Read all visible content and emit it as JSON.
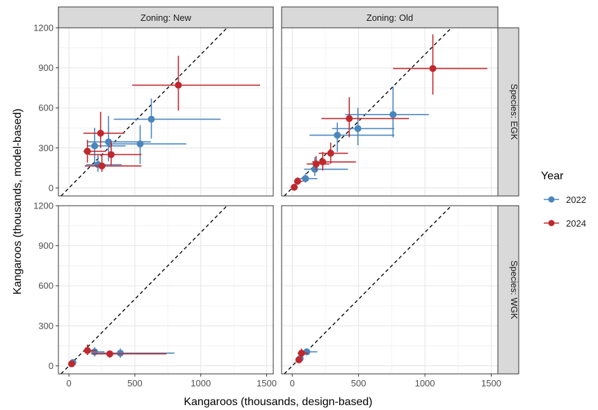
{
  "chart_data": {
    "type": "scatter",
    "xlabel": "Kangaroos (thousands, design-based)",
    "ylabel": "Kangaroos (thousands, model-based)",
    "xlim": [
      -80,
      1550
    ],
    "ylim": [
      -60,
      1200
    ],
    "x_ticks": [
      0,
      500,
      1000,
      1500
    ],
    "y_ticks": [
      0,
      300,
      600,
      900,
      1200
    ],
    "reference_line": "y = x (dashed)",
    "grid": true,
    "legend": {
      "title": "Year",
      "position": "right",
      "entries": [
        {
          "label": "2022",
          "color": "#4a86bd"
        },
        {
          "label": "2024",
          "color": "#c0282d"
        }
      ]
    },
    "column_facet_labels": [
      "Zoning: New",
      "Zoning: Old"
    ],
    "row_facet_labels": [
      "Species: EGK",
      "Species: WGK"
    ],
    "panels": [
      {
        "zoning": "New",
        "species": "EGK",
        "series": [
          {
            "name": "2022",
            "points": [
              {
                "x": 625,
                "y": 515,
                "xmin": 340,
                "xmax": 1150,
                "ymin": 370,
                "ymax": 670
              },
              {
                "x": 540,
                "y": 330,
                "xmin": 290,
                "xmax": 890,
                "ymin": 180,
                "ymax": 470
              },
              {
                "x": 300,
                "y": 345,
                "xmin": 140,
                "xmax": 620,
                "ymin": 200,
                "ymax": 540
              },
              {
                "x": 195,
                "y": 315,
                "xmin": 140,
                "xmax": 430,
                "ymin": 170,
                "ymax": 450
              },
              {
                "x": 220,
                "y": 175,
                "xmin": 130,
                "xmax": 400,
                "ymin": 120,
                "ymax": 250
              }
            ]
          },
          {
            "name": "2024",
            "points": [
              {
                "x": 830,
                "y": 770,
                "xmin": 480,
                "xmax": 1450,
                "ymin": 580,
                "ymax": 990
              },
              {
                "x": 240,
                "y": 410,
                "xmin": 110,
                "xmax": 420,
                "ymin": 300,
                "ymax": 570
              },
              {
                "x": 140,
                "y": 275,
                "xmin": 110,
                "xmax": 280,
                "ymin": 190,
                "ymax": 360
              },
              {
                "x": 320,
                "y": 250,
                "xmin": 150,
                "xmax": 550,
                "ymin": 170,
                "ymax": 350
              },
              {
                "x": 250,
                "y": 165,
                "xmin": 120,
                "xmax": 550,
                "ymin": 120,
                "ymax": 250
              }
            ]
          }
        ]
      },
      {
        "zoning": "Old",
        "species": "EGK",
        "series": [
          {
            "name": "2022",
            "points": [
              {
                "x": 760,
                "y": 550,
                "xmin": 400,
                "xmax": 1030,
                "ymin": 380,
                "ymax": 760
              },
              {
                "x": 495,
                "y": 445,
                "xmin": 300,
                "xmax": 770,
                "ymin": 320,
                "ymax": 600
              },
              {
                "x": 340,
                "y": 395,
                "xmin": 130,
                "xmax": 770,
                "ymin": 270,
                "ymax": 490
              },
              {
                "x": 170,
                "y": 140,
                "xmin": 90,
                "xmax": 420,
                "ymin": 90,
                "ymax": 230
              },
              {
                "x": 100,
                "y": 70,
                "xmin": 40,
                "xmax": 190,
                "ymin": 40,
                "ymax": 110
              }
            ]
          },
          {
            "name": "2024",
            "points": [
              {
                "x": 1060,
                "y": 895,
                "xmin": 760,
                "xmax": 1470,
                "ymin": 700,
                "ymax": 1150
              },
              {
                "x": 430,
                "y": 520,
                "xmin": 220,
                "xmax": 880,
                "ymin": 380,
                "ymax": 680
              },
              {
                "x": 290,
                "y": 260,
                "xmin": 200,
                "xmax": 420,
                "ymin": 180,
                "ymax": 340
              },
              {
                "x": 230,
                "y": 195,
                "xmin": 150,
                "xmax": 480,
                "ymin": 130,
                "ymax": 270
              },
              {
                "x": 180,
                "y": 180,
                "xmin": 110,
                "xmax": 280,
                "ymin": 130,
                "ymax": 240
              },
              {
                "x": 40,
                "y": 50,
                "xmin": 20,
                "xmax": 80,
                "ymin": 30,
                "ymax": 80
              },
              {
                "x": 15,
                "y": 5,
                "xmin": 5,
                "xmax": 30,
                "ymin": 0,
                "ymax": 15
              }
            ]
          }
        ]
      },
      {
        "zoning": "New",
        "species": "WGK",
        "series": [
          {
            "name": "2022",
            "points": [
              {
                "x": 390,
                "y": 95,
                "xmin": 180,
                "xmax": 800,
                "ymin": 60,
                "ymax": 130
              },
              {
                "x": 195,
                "y": 105,
                "xmin": 150,
                "xmax": 270,
                "ymin": 70,
                "ymax": 140
              },
              {
                "x": 30,
                "y": 25,
                "xmin": 15,
                "xmax": 45,
                "ymin": 10,
                "ymax": 40
              }
            ]
          },
          {
            "name": "2024",
            "points": [
              {
                "x": 310,
                "y": 90,
                "xmin": 170,
                "xmax": 740,
                "ymin": 60,
                "ymax": 115
              },
              {
                "x": 140,
                "y": 115,
                "xmin": 110,
                "xmax": 210,
                "ymin": 80,
                "ymax": 160
              },
              {
                "x": 20,
                "y": 15,
                "xmin": 10,
                "xmax": 30,
                "ymin": 5,
                "ymax": 25
              }
            ]
          }
        ]
      },
      {
        "zoning": "Old",
        "species": "WGK",
        "series": [
          {
            "name": "2022",
            "points": [
              {
                "x": 110,
                "y": 105,
                "xmin": 70,
                "xmax": 190,
                "ymin": 80,
                "ymax": 130
              },
              {
                "x": 60,
                "y": 55,
                "xmin": 40,
                "xmax": 80,
                "ymin": 30,
                "ymax": 90
              }
            ]
          },
          {
            "name": "2024",
            "points": [
              {
                "x": 70,
                "y": 95,
                "xmin": 40,
                "xmax": 120,
                "ymin": 60,
                "ymax": 130
              },
              {
                "x": 50,
                "y": 45,
                "xmin": 30,
                "xmax": 70,
                "ymin": 25,
                "ymax": 65
              }
            ]
          }
        ]
      }
    ]
  }
}
